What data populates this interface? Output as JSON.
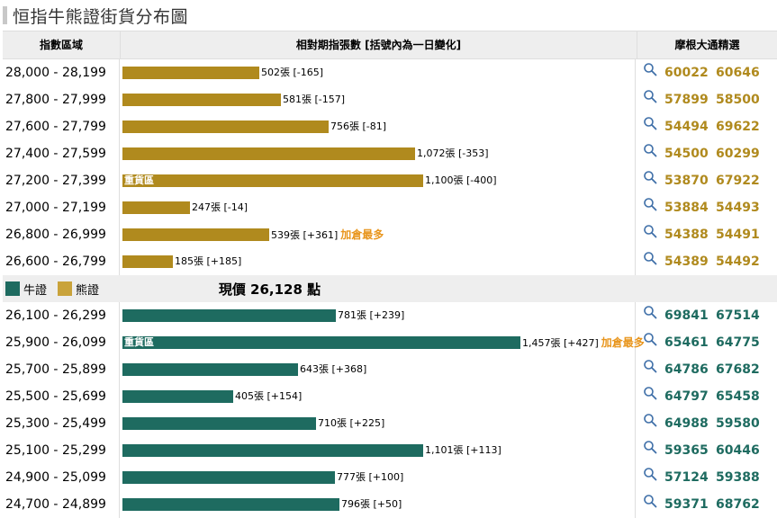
{
  "title": "恒指牛熊證街貨分布圖",
  "columns": [
    "指數區域",
    "相對期指張數 [括號內為一日變化]",
    "摩根大通精選"
  ],
  "colors": {
    "bear": "#b08a1e",
    "bull": "#1e6b60"
  },
  "legend": {
    "bull": "牛證",
    "bear": "熊證"
  },
  "current_price": "現價 26,128 點",
  "heavy_label": "重貨區",
  "hot_label": "加倉最多",
  "icon": "search-icon",
  "chart_data": {
    "type": "bar",
    "orientation": "horizontal",
    "title": "恒指牛熊證街貨分布圖",
    "xlim": [
      0,
      1500
    ],
    "bear": {
      "name": "熊證",
      "categories": [
        "28,000 - 28,199",
        "27,800 - 27,999",
        "27,600 - 27,799",
        "27,400 - 27,599",
        "27,200 - 27,399",
        "27,000 - 27,199",
        "26,800 - 26,999",
        "26,600 - 26,799"
      ],
      "values": [
        502,
        581,
        756,
        1072,
        1100,
        247,
        539,
        185
      ],
      "labels": [
        "502張 [-165]",
        "581張 [-157]",
        "756張 [-81]",
        "1,072張 [-353]",
        "1,100張 [-400]",
        "247張 [-14]",
        "539張 [+361]",
        "185張 [+185]"
      ],
      "heavy_index": 4,
      "hot_index": 6,
      "codes": [
        [
          "60022",
          "60646"
        ],
        [
          "57899",
          "58500"
        ],
        [
          "54494",
          "69622"
        ],
        [
          "54500",
          "60299"
        ],
        [
          "53870",
          "67922"
        ],
        [
          "53884",
          "54493"
        ],
        [
          "54388",
          "54491"
        ],
        [
          "54389",
          "54492"
        ]
      ]
    },
    "bull": {
      "name": "牛證",
      "categories": [
        "26,100 - 26,299",
        "25,900 - 26,099",
        "25,700 - 25,899",
        "25,500 - 25,699",
        "25,300 - 25,499",
        "25,100 - 25,299",
        "24,900 - 25,099",
        "24,700 - 24,899"
      ],
      "values": [
        781,
        1457,
        643,
        405,
        710,
        1101,
        777,
        796
      ],
      "labels": [
        "781張 [+239]",
        "1,457張 [+427]",
        "643張 [+368]",
        "405張 [+154]",
        "710張 [+225]",
        "1,101張 [+113]",
        "777張 [+100]",
        "796張 [+50]"
      ],
      "heavy_index": 1,
      "hot_index": 1,
      "codes": [
        [
          "69841",
          "67514"
        ],
        [
          "65461",
          "64775"
        ],
        [
          "64786",
          "67682"
        ],
        [
          "64797",
          "65458"
        ],
        [
          "64988",
          "59580"
        ],
        [
          "59365",
          "60446"
        ],
        [
          "57124",
          "59388"
        ],
        [
          "59371",
          "68762"
        ]
      ]
    }
  }
}
